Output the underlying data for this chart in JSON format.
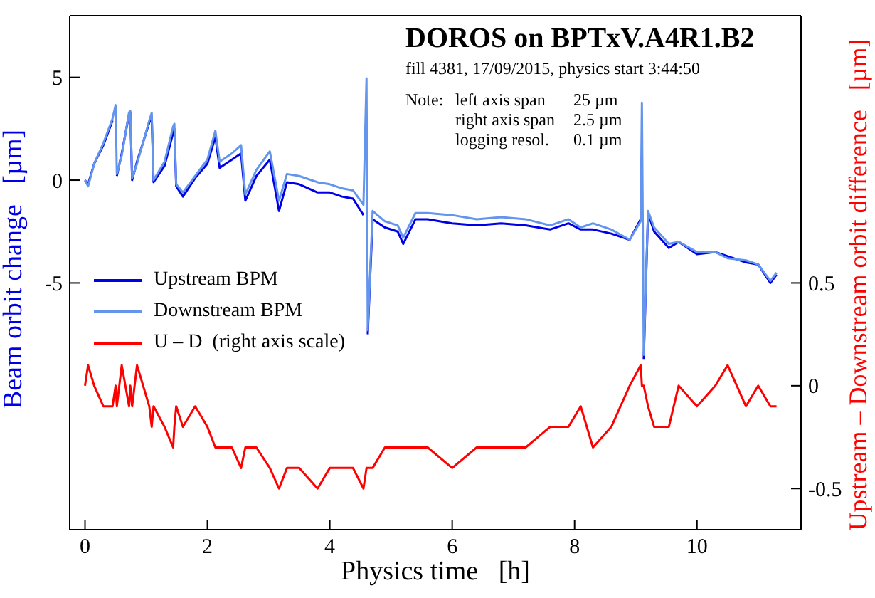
{
  "chart_data": {
    "type": "line",
    "title": "DOROS on BPTxV.A4R1.B2",
    "subtitle": "fill 4381, 17/09/2015, physics start 3:44:50",
    "annotations": [
      "Note:",
      "left axis span",
      "25 µm",
      "right axis span",
      "2.5 µm",
      "logging resol.",
      "0.1 µm"
    ],
    "xlabel": "Physics time   [h]",
    "ylabel": "Beam orbit change   [µm]",
    "y2label": "Upstream – Downstream orbit difference   [µm]",
    "x": [
      0,
      0.05,
      0.15,
      0.3,
      0.45,
      0.5,
      0.52,
      0.6,
      0.72,
      0.74,
      0.77,
      0.85,
      1.05,
      1.09,
      1.12,
      1.3,
      1.44,
      1.46,
      1.49,
      1.6,
      1.8,
      2.0,
      2.13,
      2.2,
      2.4,
      2.55,
      2.62,
      2.8,
      3.02,
      3.17,
      3.3,
      3.5,
      3.8,
      4.0,
      4.2,
      4.38,
      4.55,
      4.6,
      4.62,
      4.7,
      4.9,
      5.11,
      5.2,
      5.4,
      5.6,
      6.0,
      6.4,
      6.8,
      7.2,
      7.6,
      7.9,
      8.1,
      8.3,
      8.6,
      8.9,
      9.08,
      9.1,
      9.13,
      9.2,
      9.3,
      9.54,
      9.7,
      10.0,
      10.3,
      10.5,
      10.8,
      11.0,
      11.2,
      11.3
    ],
    "series": [
      {
        "name": "Upstream BPM",
        "color": "#0000e6",
        "values": [
          0,
          -0.2,
          0.8,
          1.7,
          2.9,
          null,
          0.2,
          1.3,
          3.2,
          3.3,
          0,
          0.9,
          2.8,
          3.1,
          -0.1,
          0.7,
          2.3,
          2.5,
          -0.3,
          -0.8,
          0.1,
          0.8,
          2.1,
          0.6,
          1.0,
          1.3,
          -1.0,
          0.2,
          1.0,
          -1.5,
          -0.1,
          -0.2,
          -0.6,
          -0.6,
          -0.8,
          -0.9,
          -1.7,
          null,
          -7.5,
          -1.9,
          -2.3,
          -2.5,
          -3.1,
          -1.9,
          -1.9,
          -2.1,
          -2.2,
          -2.1,
          -2.2,
          -2.4,
          -2.1,
          -2.4,
          -2.4,
          -2.6,
          -2.9,
          -1.9,
          null,
          -8.7,
          -1.6,
          -2.5,
          -3.3,
          -3.0,
          -3.6,
          -3.5,
          -3.7,
          -4.0,
          -4.1,
          -5.0,
          -4.6
        ]
      },
      {
        "name": "Downstream BPM",
        "color": "#6495ed",
        "values": [
          0,
          -0.3,
          0.8,
          1.8,
          3.0,
          3.65,
          0.3,
          1.2,
          3.3,
          3.36,
          0.1,
          0.8,
          2.9,
          3.27,
          0,
          0.9,
          2.6,
          2.74,
          -0.2,
          -0.6,
          0.2,
          1.0,
          2.4,
          0.9,
          1.3,
          1.7,
          -0.7,
          0.5,
          1.4,
          -1.0,
          0.3,
          0.2,
          -0.1,
          -0.2,
          -0.4,
          -0.5,
          -1.2,
          4.95,
          -7.3,
          -1.5,
          -2.0,
          -2.2,
          -2.8,
          -1.6,
          -1.6,
          -1.7,
          -1.9,
          -1.8,
          -1.9,
          -2.2,
          -1.9,
          -2.3,
          -2.1,
          -2.4,
          -2.9,
          -2.0,
          3.77,
          -8.5,
          -1.5,
          -2.3,
          -3.1,
          -3.0,
          -3.5,
          -3.5,
          -3.8,
          -3.9,
          -4.1,
          -4.9,
          -4.5
        ]
      },
      {
        "name": "U – D  (right axis scale)",
        "color": "#ff0000",
        "axis": "y2",
        "values": [
          0,
          0.1,
          0,
          -0.1,
          -0.1,
          0,
          -0.1,
          0.1,
          -0.1,
          0,
          -0.1,
          0.1,
          -0.1,
          -0.2,
          -0.1,
          -0.2,
          -0.3,
          -0.2,
          -0.1,
          -0.2,
          -0.1,
          -0.2,
          -0.3,
          -0.3,
          -0.3,
          -0.4,
          -0.3,
          -0.3,
          -0.4,
          -0.5,
          -0.4,
          -0.4,
          -0.5,
          -0.4,
          -0.4,
          -0.4,
          -0.5,
          -0.4,
          -0.4,
          -0.4,
          -0.3,
          -0.3,
          -0.3,
          -0.3,
          -0.3,
          -0.4,
          -0.3,
          -0.3,
          -0.3,
          -0.2,
          -0.2,
          -0.1,
          -0.3,
          -0.2,
          0,
          0.1,
          0,
          0,
          -0.1,
          -0.2,
          -0.2,
          0,
          -0.1,
          0,
          0.1,
          -0.1,
          0,
          -0.1,
          -0.1
        ]
      }
    ],
    "xlim": [
      -0.25,
      11.7
    ],
    "xticks": [
      0,
      2,
      4,
      6,
      8,
      10
    ],
    "ylim": [
      -17,
      8
    ],
    "yticks": [
      -5,
      0,
      5
    ],
    "y2lim": [
      -0.7,
      1.8
    ],
    "y2ticks": [
      -0.5,
      0,
      0.5
    ],
    "legend": "left"
  }
}
